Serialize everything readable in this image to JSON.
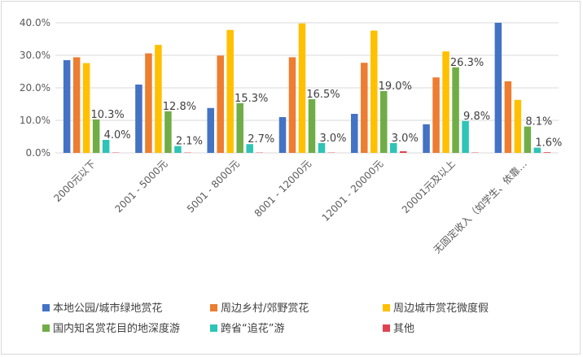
{
  "chart_data": {
    "type": "bar",
    "title": "",
    "xlabel": "",
    "ylabel": "",
    "ylim": [
      0,
      40
    ],
    "yticks": [
      "0.0%",
      "10.0%",
      "20.0%",
      "30.0%",
      "40.0%"
    ],
    "grid": true,
    "legend_position": "bottom",
    "categories": [
      "2000元以下",
      "2001 - 5000元",
      "5001 - 8000元",
      "8001 - 12000元",
      "12001 - 20000元",
      "20001元及以上",
      "无固定收入（如学生、依靠…"
    ],
    "series": [
      {
        "name": "本地公园/城市绿地赏花",
        "color": "#4472c4",
        "values": [
          28.5,
          21.0,
          13.8,
          11.0,
          12.0,
          8.8,
          40.0
        ]
      },
      {
        "name": "周边乡村/郊野赏花",
        "color": "#ed7d31",
        "values": [
          29.4,
          30.6,
          29.9,
          29.4,
          27.7,
          23.2,
          22.0
        ]
      },
      {
        "name": "周边城市赏花微度假",
        "color": "#ffc000",
        "values": [
          27.6,
          33.2,
          37.8,
          39.8,
          37.6,
          31.2,
          16.3
        ]
      },
      {
        "name": "国内知名赏花目的地深度游",
        "color": "#70ad47",
        "values": [
          10.3,
          12.8,
          15.3,
          16.5,
          19.0,
          26.3,
          8.1
        ]
      },
      {
        "name": "跨省“追花”游",
        "color": "#2ec4b6",
        "values": [
          4.0,
          2.1,
          2.7,
          3.0,
          3.0,
          9.8,
          1.6
        ]
      },
      {
        "name": "其他",
        "color": "#e0434f",
        "values": [
          0.1,
          0.1,
          0.1,
          0.1,
          0.5,
          0.1,
          0.2
        ]
      }
    ],
    "data_labels": [
      {
        "category": 0,
        "series": 3,
        "text": "10.3%"
      },
      {
        "category": 0,
        "series": 4,
        "text": "4.0%"
      },
      {
        "category": 1,
        "series": 3,
        "text": "12.8%"
      },
      {
        "category": 1,
        "series": 4,
        "text": "2.1%"
      },
      {
        "category": 2,
        "series": 3,
        "text": "15.3%"
      },
      {
        "category": 2,
        "series": 4,
        "text": "2.7%"
      },
      {
        "category": 3,
        "series": 3,
        "text": "16.5%"
      },
      {
        "category": 3,
        "series": 4,
        "text": "3.0%"
      },
      {
        "category": 4,
        "series": 3,
        "text": "19.0%"
      },
      {
        "category": 4,
        "series": 4,
        "text": "3.0%"
      },
      {
        "category": 5,
        "series": 3,
        "text": "26.3%"
      },
      {
        "category": 5,
        "series": 4,
        "text": "9.8%"
      },
      {
        "category": 6,
        "series": 3,
        "text": "8.1%"
      },
      {
        "category": 6,
        "series": 4,
        "text": "1.6%"
      }
    ]
  }
}
